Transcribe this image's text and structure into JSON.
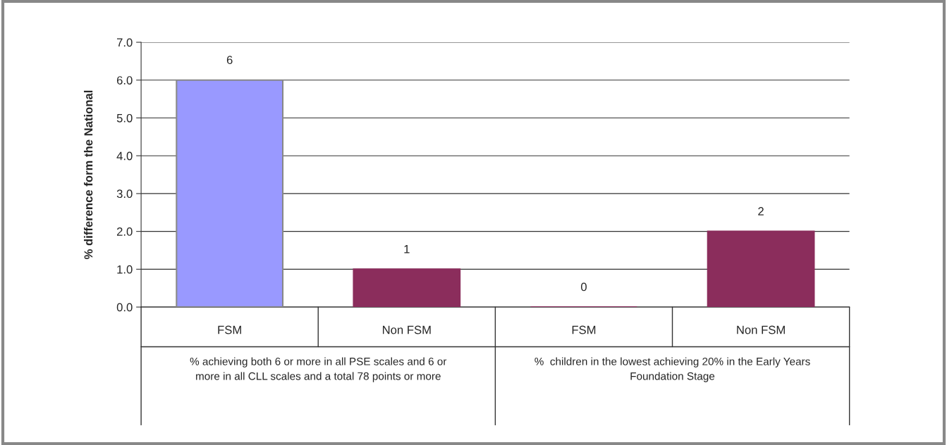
{
  "chart_data": {
    "type": "bar",
    "ylabel": "% difference form the National",
    "categories": [
      "FSM",
      "Non FSM",
      "FSM",
      "Non FSM"
    ],
    "values": [
      6,
      1,
      0,
      2
    ],
    "colors": [
      "#9999ff",
      "#8b2d5c",
      "#8b2d5c",
      "#8b2d5c"
    ],
    "ylim": [
      0,
      7
    ],
    "yticks": [
      {
        "value": 0,
        "label": "0.0"
      },
      {
        "value": 1,
        "label": "1.0"
      },
      {
        "value": 2,
        "label": "2.0"
      },
      {
        "value": 3,
        "label": "3.0"
      },
      {
        "value": 4,
        "label": "4.0"
      },
      {
        "value": 5,
        "label": "5.0"
      },
      {
        "value": 6,
        "label": "6.0"
      },
      {
        "value": 7,
        "label": "7.0"
      }
    ],
    "grid": "y",
    "data_labels": true,
    "annotations": [
      "% achieving both 6 or more in all PSE scales and 6 or more in all CLL scales and a total 78 points or more",
      "%  children in the lowest achieving 20% in the Early Years Foundation Stage"
    ]
  }
}
